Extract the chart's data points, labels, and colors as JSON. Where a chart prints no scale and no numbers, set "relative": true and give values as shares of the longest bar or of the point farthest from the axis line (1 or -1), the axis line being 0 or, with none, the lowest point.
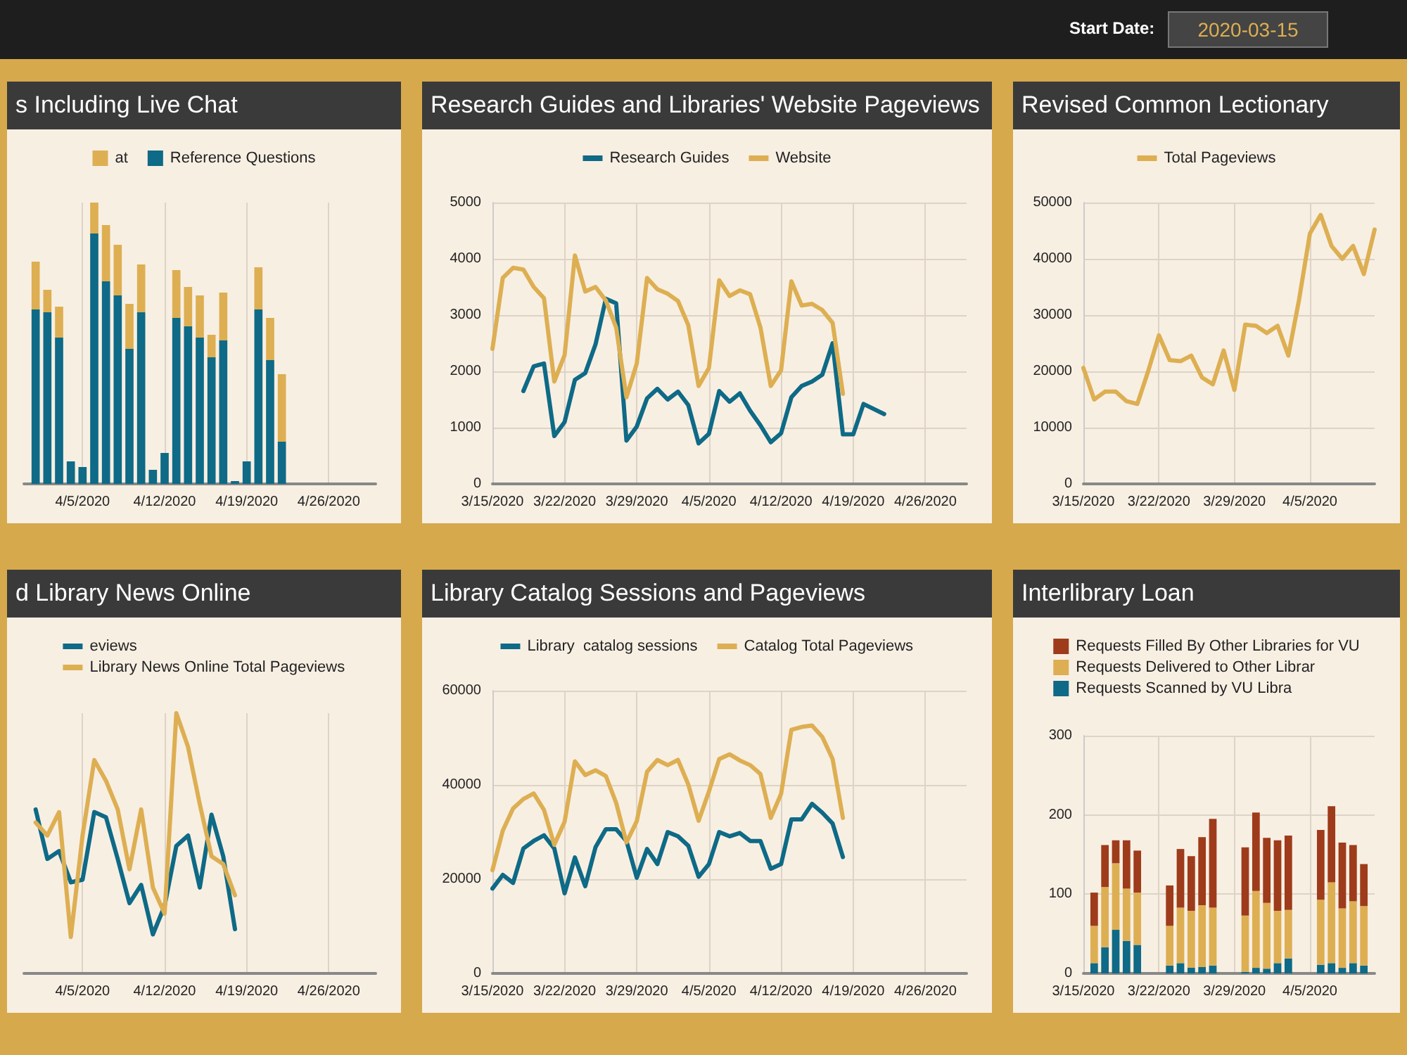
{
  "chart_data": [
    {
      "type": "other",
      "annotations": [
        "Start Date:",
        "2020-03-15"
      ]
    },
    {
      "type": "bar",
      "title": "s Including Live Chat",
      "stacked": true,
      "relative": true,
      "grid": true,
      "legend": "top",
      "x": [
        "2020-04-01",
        "2020-04-02",
        "2020-04-03",
        "2020-04-04",
        "2020-04-05",
        "2020-04-06",
        "2020-04-07",
        "2020-04-08",
        "2020-04-09",
        "2020-04-10",
        "2020-04-11",
        "2020-04-12",
        "2020-04-13",
        "2020-04-14",
        "2020-04-15",
        "2020-04-16",
        "2020-04-17",
        "2020-04-18",
        "2020-04-19",
        "2020-04-20",
        "2020-04-21",
        "2020-04-22"
      ],
      "xlim": [
        "2020-03-31",
        "2020-04-30"
      ],
      "xticks": [
        {
          "value": "2020-04-05",
          "label": "4/5/2020"
        },
        {
          "value": "2020-04-12",
          "label": "4/12/2020"
        },
        {
          "value": "2020-04-19",
          "label": "4/19/2020"
        },
        {
          "value": "2020-04-26",
          "label": "4/26/2020"
        }
      ],
      "series": [
        {
          "name": "Reference Questions",
          "color": "#0e6a86",
          "values": [
            0.62,
            0.61,
            0.52,
            0.08,
            0.06,
            0.89,
            0.72,
            0.67,
            0.48,
            0.61,
            0.05,
            0.11,
            0.59,
            0.56,
            0.52,
            0.45,
            0.51,
            0.01,
            0.08,
            0.62,
            0.44,
            0.15
          ]
        },
        {
          "name": "at",
          "color": "#ddaf52",
          "values": [
            0.17,
            0.08,
            0.11,
            0,
            0,
            0.11,
            0.2,
            0.18,
            0.16,
            0.17,
            0,
            0,
            0.17,
            0.14,
            0.15,
            0.08,
            0.17,
            0,
            0,
            0.15,
            0.15,
            0.24
          ]
        }
      ]
    },
    {
      "type": "line",
      "title": "Research Guides and Libraries' Website Pageviews",
      "grid": true,
      "legend": "top",
      "marker": "none",
      "xlim": [
        "2020-03-15",
        "2020-04-30"
      ],
      "xticks": [
        {
          "value": "2020-03-15",
          "label": "3/15/2020"
        },
        {
          "value": "2020-03-22",
          "label": "3/22/2020"
        },
        {
          "value": "2020-03-29",
          "label": "3/29/2020"
        },
        {
          "value": "2020-04-05",
          "label": "4/5/2020"
        },
        {
          "value": "2020-04-12",
          "label": "4/12/2020"
        },
        {
          "value": "2020-04-19",
          "label": "4/19/2020"
        },
        {
          "value": "2020-04-26",
          "label": "4/26/2020"
        }
      ],
      "ylim": [
        0,
        5000
      ],
      "yticks": [
        0,
        1000,
        2000,
        3000,
        4000,
        5000
      ],
      "series": [
        {
          "name": "Research Guides",
          "color": "#0e6a86",
          "x": [
            "2020-03-18",
            "2020-03-19",
            "2020-03-20",
            "2020-03-21",
            "2020-03-22",
            "2020-03-23",
            "2020-03-24",
            "2020-03-25",
            "2020-03-26",
            "2020-03-27",
            "2020-03-28",
            "2020-03-29",
            "2020-03-30",
            "2020-03-31",
            "2020-04-01",
            "2020-04-02",
            "2020-04-03",
            "2020-04-04",
            "2020-04-05",
            "2020-04-06",
            "2020-04-07",
            "2020-04-08",
            "2020-04-09",
            "2020-04-10",
            "2020-04-11",
            "2020-04-12",
            "2020-04-13",
            "2020-04-14",
            "2020-04-15",
            "2020-04-16",
            "2020-04-17",
            "2020-04-18",
            "2020-04-19",
            "2020-04-20",
            "2020-04-22"
          ],
          "values": [
            1650,
            2090,
            2140,
            850,
            1100,
            1850,
            1970,
            2480,
            3290,
            3210,
            770,
            1020,
            1520,
            1690,
            1500,
            1640,
            1400,
            720,
            890,
            1650,
            1460,
            1610,
            1300,
            1040,
            740,
            900,
            1540,
            1740,
            1820,
            1940,
            2500,
            880,
            880,
            1420,
            1240
          ]
        },
        {
          "name": "Website",
          "color": "#ddaf52",
          "x": [
            "2020-03-15",
            "2020-03-16",
            "2020-03-17",
            "2020-03-18",
            "2020-03-19",
            "2020-03-20",
            "2020-03-21",
            "2020-03-22",
            "2020-03-23",
            "2020-03-24",
            "2020-03-25",
            "2020-03-26",
            "2020-03-27",
            "2020-03-28",
            "2020-03-29",
            "2020-03-30",
            "2020-03-31",
            "2020-04-01",
            "2020-04-02",
            "2020-04-03",
            "2020-04-04",
            "2020-04-05",
            "2020-04-06",
            "2020-04-07",
            "2020-04-08",
            "2020-04-09",
            "2020-04-10",
            "2020-04-11",
            "2020-04-12",
            "2020-04-13",
            "2020-04-14",
            "2020-04-15",
            "2020-04-16",
            "2020-04-17",
            "2020-04-18"
          ],
          "values": [
            2400,
            3660,
            3840,
            3810,
            3500,
            3300,
            1820,
            2290,
            4060,
            3420,
            3500,
            3260,
            2780,
            1540,
            2140,
            3660,
            3460,
            3380,
            3250,
            2820,
            1740,
            2060,
            3620,
            3340,
            3440,
            3370,
            2780,
            1740,
            2020,
            3600,
            3170,
            3200,
            3090,
            2860,
            1600
          ]
        }
      ]
    },
    {
      "type": "line",
      "title": "Revised Common Lectionary",
      "grid": true,
      "legend": "top",
      "marker": "none",
      "x": [
        "2020-03-15",
        "2020-03-16",
        "2020-03-17",
        "2020-03-18",
        "2020-03-19",
        "2020-03-20",
        "2020-03-21",
        "2020-03-22",
        "2020-03-23",
        "2020-03-24",
        "2020-03-25",
        "2020-03-26",
        "2020-03-27",
        "2020-03-28",
        "2020-03-29",
        "2020-03-30",
        "2020-03-31",
        "2020-04-01",
        "2020-04-02",
        "2020-04-03",
        "2020-04-04",
        "2020-04-05",
        "2020-04-06",
        "2020-04-07",
        "2020-04-08",
        "2020-04-09",
        "2020-04-10",
        "2020-04-11"
      ],
      "xlim": [
        "2020-03-15",
        "2020-04-11"
      ],
      "xticks": [
        {
          "value": "2020-03-15",
          "label": "3/15/2020"
        },
        {
          "value": "2020-03-22",
          "label": "3/22/2020"
        },
        {
          "value": "2020-03-29",
          "label": "3/29/2020"
        },
        {
          "value": "2020-04-05",
          "label": "4/5/2020"
        }
      ],
      "ylim": [
        0,
        50000
      ],
      "yticks": [
        0,
        10000,
        20000,
        30000,
        40000,
        50000
      ],
      "series": [
        {
          "name": "Total Pageviews",
          "color": "#ddaf52",
          "values": [
            20600,
            15000,
            16400,
            16400,
            14700,
            14200,
            20000,
            26400,
            22000,
            21800,
            22800,
            18900,
            17700,
            23700,
            16700,
            28300,
            28100,
            26800,
            28100,
            22800,
            32800,
            44500,
            47800,
            42300,
            40000,
            42300,
            37300,
            45200
          ]
        }
      ]
    },
    {
      "type": "line",
      "title": "d Library News Online",
      "relative": true,
      "grid": true,
      "legend": "top",
      "marker": "none",
      "x": [
        "2020-04-01",
        "2020-04-02",
        "2020-04-03",
        "2020-04-04",
        "2020-04-05",
        "2020-04-06",
        "2020-04-07",
        "2020-04-08",
        "2020-04-09",
        "2020-04-10",
        "2020-04-11",
        "2020-04-12",
        "2020-04-13",
        "2020-04-14",
        "2020-04-15",
        "2020-04-16",
        "2020-04-17",
        "2020-04-18"
      ],
      "xlim": [
        "2020-03-31",
        "2020-04-30"
      ],
      "xticks": [
        {
          "value": "2020-04-05",
          "label": "4/5/2020"
        },
        {
          "value": "2020-04-12",
          "label": "4/12/2020"
        },
        {
          "value": "2020-04-19",
          "label": "4/19/2020"
        },
        {
          "value": "2020-04-26",
          "label": "4/26/2020"
        }
      ],
      "series": [
        {
          "name": "eviews",
          "color": "#0e6a86",
          "values": [
            0.63,
            0.44,
            0.47,
            0.35,
            0.36,
            0.62,
            0.6,
            0.44,
            0.27,
            0.34,
            0.15,
            0.26,
            0.49,
            0.53,
            0.33,
            0.61,
            0.45,
            0.17
          ]
        },
        {
          "name": "Library News Online Total Pageviews",
          "color": "#ddaf52",
          "values": [
            0.58,
            0.53,
            0.62,
            0.14,
            0.53,
            0.82,
            0.74,
            0.63,
            0.4,
            0.63,
            0.33,
            0.23,
            1,
            0.87,
            0.65,
            0.45,
            0.42,
            0.3
          ]
        }
      ]
    },
    {
      "type": "line",
      "title": "Library Catalog Sessions and Pageviews",
      "grid": true,
      "legend": "top",
      "marker": "none",
      "x": [
        "2020-03-15",
        "2020-03-16",
        "2020-03-17",
        "2020-03-18",
        "2020-03-19",
        "2020-03-20",
        "2020-03-21",
        "2020-03-22",
        "2020-03-23",
        "2020-03-24",
        "2020-03-25",
        "2020-03-26",
        "2020-03-27",
        "2020-03-28",
        "2020-03-29",
        "2020-03-30",
        "2020-03-31",
        "2020-04-01",
        "2020-04-02",
        "2020-04-03",
        "2020-04-04",
        "2020-04-05",
        "2020-04-06",
        "2020-04-07",
        "2020-04-08",
        "2020-04-09",
        "2020-04-10",
        "2020-04-11",
        "2020-04-12",
        "2020-04-13",
        "2020-04-14",
        "2020-04-15",
        "2020-04-16",
        "2020-04-17",
        "2020-04-18"
      ],
      "xlim": [
        "2020-03-15",
        "2020-04-30"
      ],
      "xticks": [
        {
          "value": "2020-03-15",
          "label": "3/15/2020"
        },
        {
          "value": "2020-03-22",
          "label": "3/22/2020"
        },
        {
          "value": "2020-03-29",
          "label": "3/29/2020"
        },
        {
          "value": "2020-04-05",
          "label": "4/5/2020"
        },
        {
          "value": "2020-04-12",
          "label": "4/12/2020"
        },
        {
          "value": "2020-04-19",
          "label": "4/19/2020"
        },
        {
          "value": "2020-04-26",
          "label": "4/26/2020"
        }
      ],
      "ylim": [
        0,
        60000
      ],
      "yticks": [
        0,
        20000,
        40000,
        60000
      ],
      "series": [
        {
          "name": "Library  catalog sessions",
          "color": "#0e6a86",
          "values": [
            18000,
            20900,
            19200,
            26500,
            28100,
            29300,
            26500,
            17000,
            24600,
            18500,
            26800,
            30600,
            30600,
            28100,
            20300,
            26400,
            23200,
            30000,
            29100,
            27100,
            20500,
            23200,
            30000,
            29100,
            29800,
            28100,
            28100,
            22200,
            23200,
            32700,
            32700,
            36000,
            34100,
            31800,
            24700
          ]
        },
        {
          "name": "Catalog Total Pageviews",
          "color": "#ddaf52",
          "values": [
            21900,
            30300,
            35000,
            37000,
            38200,
            34700,
            27300,
            32200,
            45000,
            42100,
            43100,
            41900,
            36200,
            27800,
            32300,
            42800,
            45300,
            44200,
            45300,
            40100,
            32400,
            38600,
            45500,
            46500,
            45200,
            44200,
            42300,
            33000,
            38100,
            51700,
            52300,
            52600,
            50200,
            45500,
            33000
          ]
        }
      ]
    },
    {
      "type": "bar",
      "title": "Interlibrary Loan",
      "stacked": true,
      "grid": true,
      "legend": "top",
      "x": [
        "2020-03-16",
        "2020-03-17",
        "2020-03-18",
        "2020-03-19",
        "2020-03-20",
        "2020-03-23",
        "2020-03-24",
        "2020-03-25",
        "2020-03-26",
        "2020-03-27",
        "2020-03-30",
        "2020-03-31",
        "2020-04-01",
        "2020-04-02",
        "2020-04-03",
        "2020-04-06",
        "2020-04-07",
        "2020-04-08",
        "2020-04-09",
        "2020-04-10"
      ],
      "xlim": [
        "2020-03-15",
        "2020-04-11"
      ],
      "xticks": [
        {
          "value": "2020-03-15",
          "label": "3/15/2020"
        },
        {
          "value": "2020-03-22",
          "label": "3/22/2020"
        },
        {
          "value": "2020-03-29",
          "label": "3/29/2020"
        },
        {
          "value": "2020-04-05",
          "label": "4/5/2020"
        }
      ],
      "ylim": [
        0,
        300
      ],
      "yticks": [
        0,
        100,
        200,
        300
      ],
      "series": [
        {
          "name": "Requests Scanned by VU Libra",
          "color": "#0e6a86",
          "values": [
            13,
            33,
            55,
            41,
            36,
            10,
            13,
            7,
            8,
            10,
            2,
            7,
            6,
            13,
            19,
            11,
            13,
            7,
            13,
            10
          ]
        },
        {
          "name": "Requests Delivered to Other Librar",
          "color": "#ddaf52",
          "values": [
            47,
            76,
            84,
            66,
            66,
            50,
            70,
            72,
            78,
            73,
            71,
            97,
            83,
            66,
            61,
            82,
            102,
            75,
            78,
            75
          ]
        },
        {
          "name": "Requests Filled By Other Libraries for VU",
          "color": "#9e3b1b",
          "values": [
            42,
            53,
            29,
            61,
            53,
            51,
            74,
            69,
            86,
            112,
            86,
            99,
            82,
            89,
            94,
            88,
            96,
            83,
            71,
            53
          ]
        }
      ]
    }
  ]
}
